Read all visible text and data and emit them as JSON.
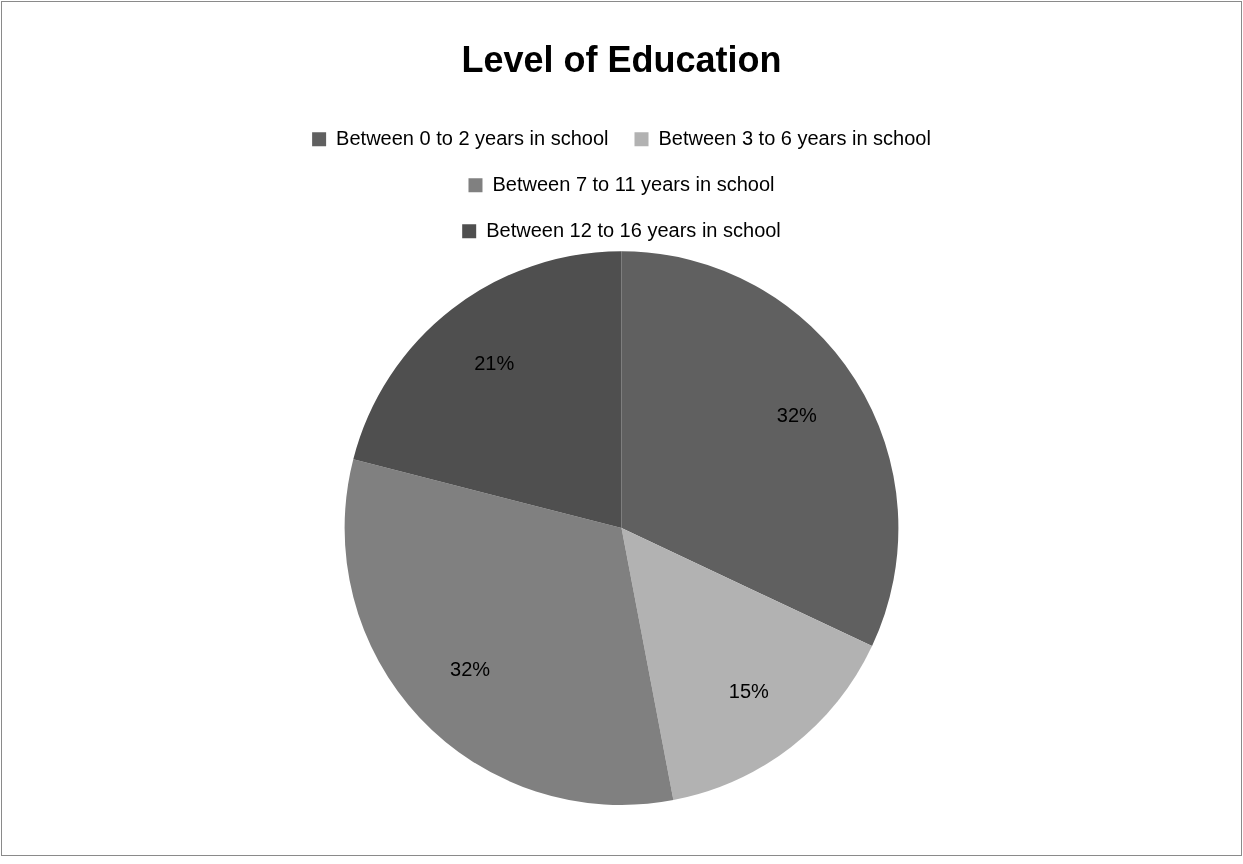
{
  "chart_data": {
    "type": "pie",
    "title": "Level of Education",
    "categories": [
      "Between 0 to 2 years in school",
      "Between 3 to 6 years in school",
      "Between 7 to 11 years in school",
      "Between 12 to 16 years in school"
    ],
    "values": [
      32,
      15,
      32,
      21
    ],
    "value_labels": [
      "32%",
      "15%",
      "32%",
      "21%"
    ],
    "colors": [
      "#606060",
      "#b2b2b2",
      "#808080",
      "#4f4f4f"
    ],
    "legend": "top"
  }
}
